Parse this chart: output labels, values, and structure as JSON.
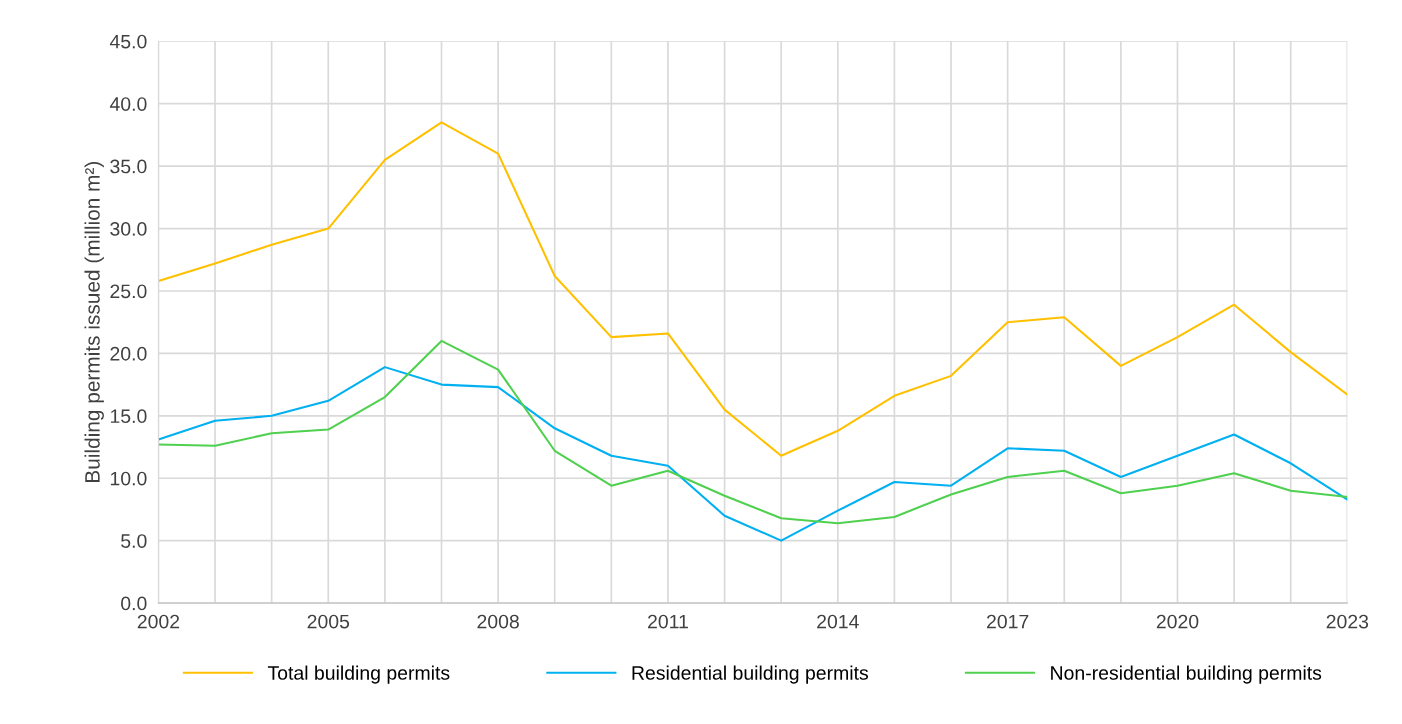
{
  "chart_data": {
    "type": "line",
    "ylabel": "Building permits issued (million m²)",
    "x": [
      2002,
      2003,
      2004,
      2005,
      2006,
      2007,
      2008,
      2009,
      2010,
      2011,
      2012,
      2013,
      2014,
      2015,
      2016,
      2017,
      2018,
      2019,
      2020,
      2021,
      2022,
      2023
    ],
    "series": [
      {
        "name": "Total building permits",
        "color": "#ffc000",
        "values": [
          25.8,
          27.2,
          28.7,
          30.0,
          35.5,
          38.5,
          36.0,
          26.2,
          21.3,
          21.6,
          15.5,
          11.8,
          13.8,
          16.6,
          18.2,
          22.5,
          22.9,
          19.0,
          21.3,
          23.9,
          20.1,
          16.7
        ]
      },
      {
        "name": "Residential building permits",
        "color": "#00b0f0",
        "values": [
          13.1,
          14.6,
          15.0,
          16.2,
          18.9,
          17.5,
          17.3,
          14.0,
          11.8,
          11.0,
          7.0,
          5.0,
          7.4,
          9.7,
          9.4,
          12.4,
          12.2,
          10.1,
          11.8,
          13.5,
          11.2,
          8.3
        ]
      },
      {
        "name": "Non-residential building permits",
        "color": "#4fd04f",
        "values": [
          12.7,
          12.6,
          13.6,
          13.9,
          16.5,
          21.0,
          18.7,
          12.2,
          9.4,
          10.6,
          8.6,
          6.8,
          6.4,
          6.9,
          8.7,
          10.1,
          10.6,
          8.8,
          9.4,
          10.4,
          9.0,
          8.5
        ]
      }
    ],
    "xlim": [
      2002,
      2023
    ],
    "xticks": [
      2002,
      {
        "value": 2003,
        "label": null
      },
      {
        "value": 2004,
        "label": null
      },
      2005,
      {
        "value": 2006,
        "label": null
      },
      {
        "value": 2007,
        "label": null
      },
      2008,
      {
        "value": 2009,
        "label": null
      },
      {
        "value": 2010,
        "label": null
      },
      2011,
      {
        "value": 2012,
        "label": null
      },
      {
        "value": 2013,
        "label": null
      },
      2014,
      {
        "value": 2015,
        "label": null
      },
      {
        "value": 2016,
        "label": null
      },
      2017,
      {
        "value": 2018,
        "label": null
      },
      {
        "value": 2019,
        "label": null
      },
      2020,
      {
        "value": 2021,
        "label": null
      },
      {
        "value": 2022,
        "label": null
      },
      2023
    ],
    "ylim": [
      0,
      45
    ],
    "yticks": [
      {
        "value": 0,
        "label": "0.0"
      },
      {
        "value": 5,
        "label": "5.0"
      },
      {
        "value": 10,
        "label": "10.0"
      },
      {
        "value": 15,
        "label": "15.0"
      },
      {
        "value": 20,
        "label": "20.0"
      },
      {
        "value": 25,
        "label": "25.0"
      },
      {
        "value": 30,
        "label": "30.0"
      },
      {
        "value": 35,
        "label": "35.0"
      },
      {
        "value": 40,
        "label": "40.0"
      },
      {
        "value": 45,
        "label": "45.0"
      }
    ],
    "grid": true,
    "legend": "bottom",
    "marker": "none",
    "line_style": "solid"
  }
}
